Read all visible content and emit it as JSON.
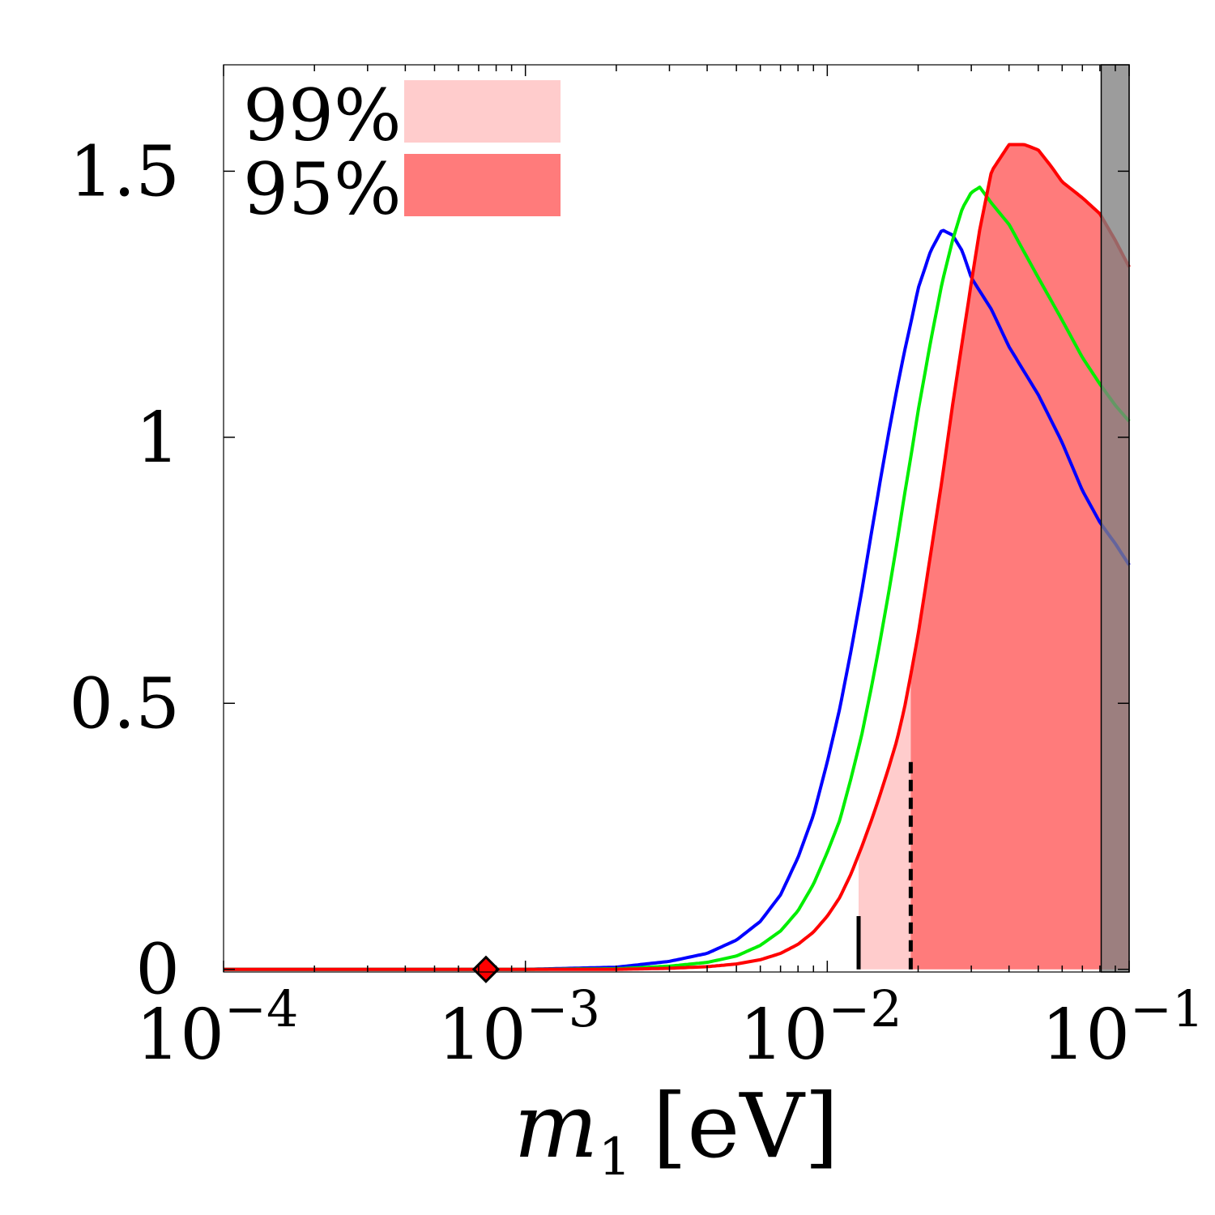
{
  "chart_data": {
    "type": "area",
    "x_scale": "log",
    "xlim": [
      0.0001,
      0.1
    ],
    "ylim": [
      -0.005,
      1.7
    ],
    "grid": false,
    "legend_placement": "top-left",
    "xlabel_symbol": "m",
    "xlabel_subscript": "1",
    "xlabel_unit": "[eV]",
    "ylabel": "",
    "x_ticks": [
      {
        "value": 0.0001,
        "base": "10",
        "exp": "−4"
      },
      {
        "value": 0.001,
        "base": "10",
        "exp": "−3"
      },
      {
        "value": 0.01,
        "base": "10",
        "exp": "−2"
      },
      {
        "value": 0.1,
        "base": "10",
        "exp": "−1"
      }
    ],
    "y_ticks": [
      {
        "value": 0,
        "label": "0"
      },
      {
        "value": 0.5,
        "label": "0.5"
      },
      {
        "value": 1,
        "label": "1"
      },
      {
        "value": 1.5,
        "label": "1.5"
      }
    ],
    "legend": [
      {
        "label": "99%",
        "color": "#ffcccc"
      },
      {
        "label": "95%",
        "color": "#ff7b7b"
      }
    ],
    "series": [
      {
        "color": "#0000ff",
        "x": [
          0.0001,
          0.001,
          0.002,
          0.003,
          0.004,
          0.005,
          0.006,
          0.007,
          0.008,
          0.009,
          0.01,
          0.011,
          0.012,
          0.013,
          0.014,
          0.015,
          0.016,
          0.017,
          0.018,
          0.019,
          0.02,
          0.022,
          0.024,
          0.026,
          0.028,
          0.03,
          0.035,
          0.04,
          0.05,
          0.06,
          0.07,
          0.08,
          0.09,
          0.1
        ],
        "y": [
          0,
          0,
          0.004,
          0.015,
          0.03,
          0.055,
          0.09,
          0.14,
          0.21,
          0.29,
          0.39,
          0.49,
          0.6,
          0.71,
          0.82,
          0.92,
          1.01,
          1.09,
          1.16,
          1.22,
          1.28,
          1.35,
          1.39,
          1.38,
          1.35,
          1.3,
          1.24,
          1.17,
          1.08,
          0.99,
          0.9,
          0.84,
          0.8,
          0.76
        ]
      },
      {
        "color": "#00ee00",
        "x": [
          0.0001,
          0.001,
          0.002,
          0.003,
          0.004,
          0.005,
          0.006,
          0.007,
          0.008,
          0.009,
          0.01,
          0.011,
          0.012,
          0.013,
          0.014,
          0.015,
          0.016,
          0.017,
          0.018,
          0.019,
          0.02,
          0.022,
          0.024,
          0.026,
          0.028,
          0.03,
          0.032,
          0.035,
          0.04,
          0.05,
          0.06,
          0.07,
          0.08,
          0.09,
          0.1
        ],
        "y": [
          0,
          0,
          0.001,
          0.006,
          0.013,
          0.025,
          0.045,
          0.072,
          0.11,
          0.16,
          0.22,
          0.28,
          0.36,
          0.44,
          0.53,
          0.62,
          0.71,
          0.8,
          0.89,
          0.97,
          1.05,
          1.18,
          1.29,
          1.37,
          1.43,
          1.46,
          1.47,
          1.44,
          1.4,
          1.3,
          1.22,
          1.15,
          1.1,
          1.06,
          1.03
        ]
      },
      {
        "color": "#ff0000",
        "x": [
          0.0001,
          0.001,
          0.002,
          0.003,
          0.004,
          0.005,
          0.006,
          0.007,
          0.008,
          0.009,
          0.01,
          0.011,
          0.012,
          0.013,
          0.014,
          0.015,
          0.016,
          0.017,
          0.018,
          0.019,
          0.02,
          0.022,
          0.024,
          0.026,
          0.028,
          0.03,
          0.032,
          0.035,
          0.04,
          0.045,
          0.05,
          0.055,
          0.06,
          0.07,
          0.08,
          0.09,
          0.1
        ],
        "y": [
          0,
          0,
          0,
          0.002,
          0.005,
          0.01,
          0.018,
          0.03,
          0.047,
          0.07,
          0.1,
          0.135,
          0.18,
          0.23,
          0.28,
          0.33,
          0.38,
          0.43,
          0.49,
          0.56,
          0.63,
          0.78,
          0.92,
          1.06,
          1.18,
          1.29,
          1.39,
          1.5,
          1.55,
          1.55,
          1.54,
          1.51,
          1.48,
          1.45,
          1.42,
          1.37,
          1.32
        ]
      }
    ],
    "shaded_regions": [
      {
        "label": "99%",
        "color": "#ffcccc",
        "x_start": 0.0127,
        "x_end": 0.0189
      },
      {
        "label": "95%",
        "color": "#ff7b7b",
        "x_start": 0.0189,
        "x_end": 0.1
      }
    ],
    "excluded_region": {
      "color": "#808080",
      "x_start": 0.0808,
      "x_end": 0.1
    },
    "markers": [
      {
        "shape": "diamond",
        "color": "#ff0000",
        "x": 0.00074,
        "y": 0
      }
    ],
    "vertical_lines": [
      {
        "x": 0.0127,
        "style": "solid",
        "y_top": 0.1
      },
      {
        "x": 0.0189,
        "style": "dashed",
        "y_top": 0.39
      }
    ]
  }
}
